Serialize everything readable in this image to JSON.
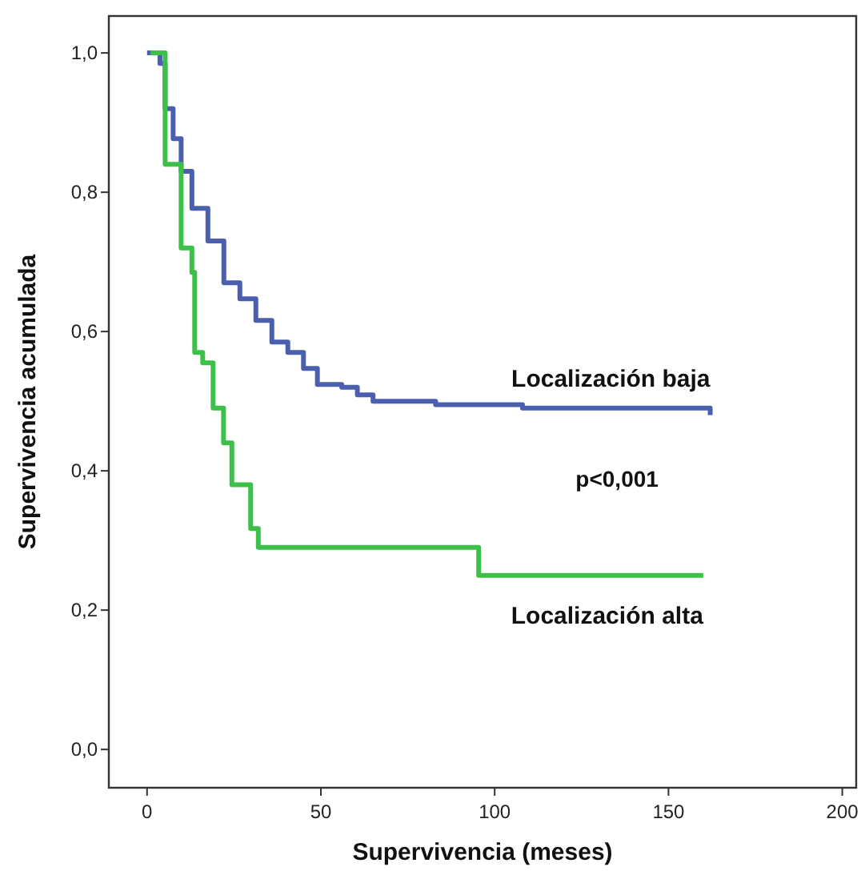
{
  "chart_data": {
    "type": "step",
    "xlabel": "Supervivencia (meses)",
    "ylabel": "Supervivencia acumulada",
    "xlim": [
      -11,
      204
    ],
    "ylim": [
      -0.055,
      1.053
    ],
    "xticks": [
      0,
      50,
      100,
      150,
      200
    ],
    "yticks": [
      {
        "value": 0,
        "label": "0,0"
      },
      {
        "value": 0.2,
        "label": "0,2"
      },
      {
        "value": 0.4,
        "label": "0,4"
      },
      {
        "value": 0.6,
        "label": "0,6"
      },
      {
        "value": 0.8,
        "label": "0,8"
      },
      {
        "value": 1,
        "label": "1,0"
      }
    ],
    "grid": false,
    "marker": "none",
    "line_style": "solid",
    "annotations": [
      "p<0,001"
    ],
    "series": [
      {
        "name": "Localización baja",
        "color": "#4a5fae",
        "x": [
          0,
          3.7,
          5.2,
          7.5,
          9.8,
          12.9,
          17.5,
          22.1,
          26.7,
          31.3,
          35.9,
          40.5,
          45,
          49,
          56,
          60.5,
          65,
          83,
          108,
          162
        ],
        "values": [
          1,
          0.985,
          0.92,
          0.877,
          0.83,
          0.777,
          0.73,
          0.67,
          0.647,
          0.616,
          0.585,
          0.57,
          0.547,
          0.524,
          0.52,
          0.509,
          0.5,
          0.495,
          0.49,
          0.48
        ]
      },
      {
        "name": "Localización alta",
        "color": "#3cc04a",
        "x": [
          1,
          5.2,
          9.8,
          12.9,
          13.7,
          16,
          19,
          22,
          24.4,
          29.8,
          32,
          95.4,
          160
        ],
        "values": [
          1,
          0.84,
          0.72,
          0.685,
          0.57,
          0.555,
          0.49,
          0.44,
          0.38,
          0.317,
          0.29,
          0.25,
          0.25
        ]
      }
    ]
  }
}
